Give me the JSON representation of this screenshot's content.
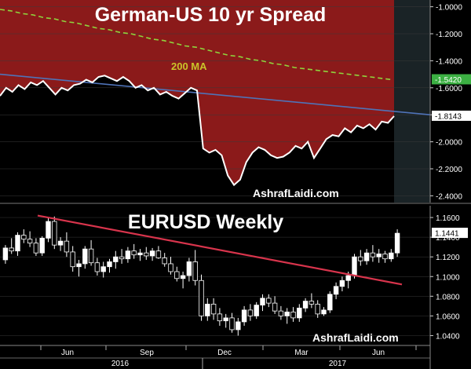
{
  "chart_data": [
    {
      "type": "area",
      "title": "German-US 10 yr Spread",
      "watermark": "AshrafLaidi.com",
      "ylim": [
        -2.45,
        -0.95
      ],
      "yticks": [
        "-1.0000",
        "-1.2000",
        "-1.4000",
        "-1.6000",
        "-1.8000",
        "-2.0000",
        "-2.2000",
        "-2.4000"
      ],
      "ytick_values": [
        -1.0,
        -1.2,
        -1.4,
        -1.6,
        -1.8,
        -2.0,
        -2.2,
        -2.4
      ],
      "colors": {
        "area": "#8b1a1a",
        "line": "#ffffff",
        "ma": "#8fd33c",
        "trend": "#4f73b8",
        "ma_badge": "#3cb043"
      },
      "ma_label": "200 MA",
      "last_value_label": "-1.8143",
      "ma_value_label": "-1.5420",
      "series": [
        {
          "values": [
            -1.66,
            -1.6,
            -1.63,
            -1.58,
            -1.61,
            -1.56,
            -1.58,
            -1.55,
            -1.6,
            -1.65,
            -1.6,
            -1.62,
            -1.58,
            -1.57,
            -1.54,
            -1.56,
            -1.52,
            -1.51,
            -1.53,
            -1.55,
            -1.52,
            -1.55,
            -1.6,
            -1.58,
            -1.62,
            -1.6,
            -1.65,
            -1.63,
            -1.66,
            -1.68,
            -1.64,
            -1.6,
            -1.62,
            -2.05,
            -2.08,
            -2.06,
            -2.1,
            -2.25,
            -2.32,
            -2.28,
            -2.15,
            -2.08,
            -2.04,
            -2.06,
            -2.1,
            -2.12,
            -2.11,
            -2.08,
            -2.03,
            -2.05,
            -2.0,
            -2.12,
            -2.05,
            -1.98,
            -1.95,
            -1.96,
            -1.9,
            -1.93,
            -1.88,
            -1.9,
            -1.87,
            -1.91,
            -1.85,
            -1.86,
            -1.81
          ]
        },
        {
          "values": [
            -1.02,
            -1.03,
            -1.05,
            -1.06,
            -1.08,
            -1.09,
            -1.11,
            -1.12,
            -1.14,
            -1.16,
            -1.17,
            -1.19,
            -1.2,
            -1.22,
            -1.24,
            -1.25,
            -1.27,
            -1.29,
            -1.3,
            -1.32,
            -1.34,
            -1.36,
            -1.37,
            -1.39,
            -1.4,
            -1.42,
            -1.43,
            -1.45,
            -1.46,
            -1.47,
            -1.48,
            -1.49,
            -1.5,
            -1.51,
            -1.52,
            -1.53,
            -1.54
          ]
        },
        {
          "values": [
            -1.5,
            -1.8
          ]
        }
      ]
    },
    {
      "type": "bar",
      "title": "EURUSD Weekly",
      "watermark": "AshrafLaidi.com",
      "ylim": [
        1.03,
        1.172
      ],
      "yticks": [
        "1.1600",
        "1.1400",
        "1.1200",
        "1.1000",
        "1.0800",
        "1.0600",
        "1.0400"
      ],
      "ytick_values": [
        1.16,
        1.14,
        1.12,
        1.1,
        1.08,
        1.06,
        1.04
      ],
      "last_value_label": "1.1441",
      "categories": [
        "Jun",
        "Sep",
        "Dec",
        "Mar",
        "Jun"
      ],
      "years": [
        "2016",
        "2017"
      ],
      "colors": {
        "up": "#ffffff",
        "down": "#000000",
        "wick": "#ffffff",
        "trend": "#d8344c"
      },
      "trend": [
        1.162,
        1.092
      ],
      "candles": [
        [
          1.117,
          1.132,
          1.113,
          1.129
        ],
        [
          1.129,
          1.139,
          1.123,
          1.126
        ],
        [
          1.126,
          1.145,
          1.121,
          1.142
        ],
        [
          1.142,
          1.148,
          1.134,
          1.138
        ],
        [
          1.138,
          1.146,
          1.13,
          1.134
        ],
        [
          1.134,
          1.139,
          1.121,
          1.124
        ],
        [
          1.124,
          1.141,
          1.121,
          1.139
        ],
        [
          1.139,
          1.16,
          1.135,
          1.156
        ],
        [
          1.156,
          1.161,
          1.128,
          1.132
        ],
        [
          1.132,
          1.14,
          1.126,
          1.136
        ],
        [
          1.136,
          1.145,
          1.12,
          1.125
        ],
        [
          1.125,
          1.131,
          1.105,
          1.11
        ],
        [
          1.11,
          1.117,
          1.1,
          1.113
        ],
        [
          1.113,
          1.131,
          1.108,
          1.128
        ],
        [
          1.128,
          1.137,
          1.111,
          1.114
        ],
        [
          1.114,
          1.119,
          1.101,
          1.105
        ],
        [
          1.105,
          1.115,
          1.099,
          1.11
        ],
        [
          1.11,
          1.118,
          1.104,
          1.115
        ],
        [
          1.115,
          1.126,
          1.108,
          1.12
        ],
        [
          1.12,
          1.128,
          1.113,
          1.118
        ],
        [
          1.118,
          1.13,
          1.114,
          1.126
        ],
        [
          1.126,
          1.133,
          1.118,
          1.122
        ],
        [
          1.122,
          1.128,
          1.116,
          1.124
        ],
        [
          1.124,
          1.13,
          1.117,
          1.121
        ],
        [
          1.121,
          1.129,
          1.116,
          1.126
        ],
        [
          1.126,
          1.131,
          1.118,
          1.119
        ],
        [
          1.119,
          1.124,
          1.11,
          1.113
        ],
        [
          1.113,
          1.12,
          1.102,
          1.105
        ],
        [
          1.105,
          1.11,
          1.095,
          1.098
        ],
        [
          1.098,
          1.105,
          1.088,
          1.101
        ],
        [
          1.101,
          1.119,
          1.095,
          1.115
        ],
        [
          1.115,
          1.127,
          1.091,
          1.096
        ],
        [
          1.096,
          1.102,
          1.055,
          1.06
        ],
        [
          1.06,
          1.078,
          1.055,
          1.072
        ],
        [
          1.072,
          1.078,
          1.056,
          1.062
        ],
        [
          1.062,
          1.068,
          1.05,
          1.055
        ],
        [
          1.055,
          1.062,
          1.048,
          1.058
        ],
        [
          1.058,
          1.063,
          1.043,
          1.046
        ],
        [
          1.046,
          1.058,
          1.04,
          1.054
        ],
        [
          1.054,
          1.07,
          1.05,
          1.066
        ],
        [
          1.066,
          1.072,
          1.055,
          1.06
        ],
        [
          1.06,
          1.074,
          1.057,
          1.071
        ],
        [
          1.071,
          1.082,
          1.065,
          1.078
        ],
        [
          1.078,
          1.082,
          1.069,
          1.073
        ],
        [
          1.073,
          1.08,
          1.062,
          1.065
        ],
        [
          1.065,
          1.07,
          1.056,
          1.06
        ],
        [
          1.06,
          1.068,
          1.052,
          1.064
        ],
        [
          1.064,
          1.069,
          1.054,
          1.058
        ],
        [
          1.058,
          1.072,
          1.054,
          1.068
        ],
        [
          1.068,
          1.078,
          1.064,
          1.075
        ],
        [
          1.075,
          1.083,
          1.068,
          1.072
        ],
        [
          1.072,
          1.076,
          1.058,
          1.062
        ],
        [
          1.062,
          1.069,
          1.06,
          1.066
        ],
        [
          1.066,
          1.085,
          1.063,
          1.082
        ],
        [
          1.082,
          1.094,
          1.077,
          1.09
        ],
        [
          1.09,
          1.1,
          1.085,
          1.096
        ],
        [
          1.096,
          1.105,
          1.088,
          1.101
        ],
        [
          1.101,
          1.123,
          1.098,
          1.12
        ],
        [
          1.12,
          1.127,
          1.111,
          1.116
        ],
        [
          1.116,
          1.128,
          1.112,
          1.124
        ],
        [
          1.124,
          1.132,
          1.115,
          1.12
        ],
        [
          1.12,
          1.128,
          1.114,
          1.123
        ],
        [
          1.123,
          1.126,
          1.114,
          1.118
        ],
        [
          1.118,
          1.128,
          1.115,
          1.124
        ],
        [
          1.124,
          1.148,
          1.12,
          1.144
        ]
      ]
    }
  ]
}
